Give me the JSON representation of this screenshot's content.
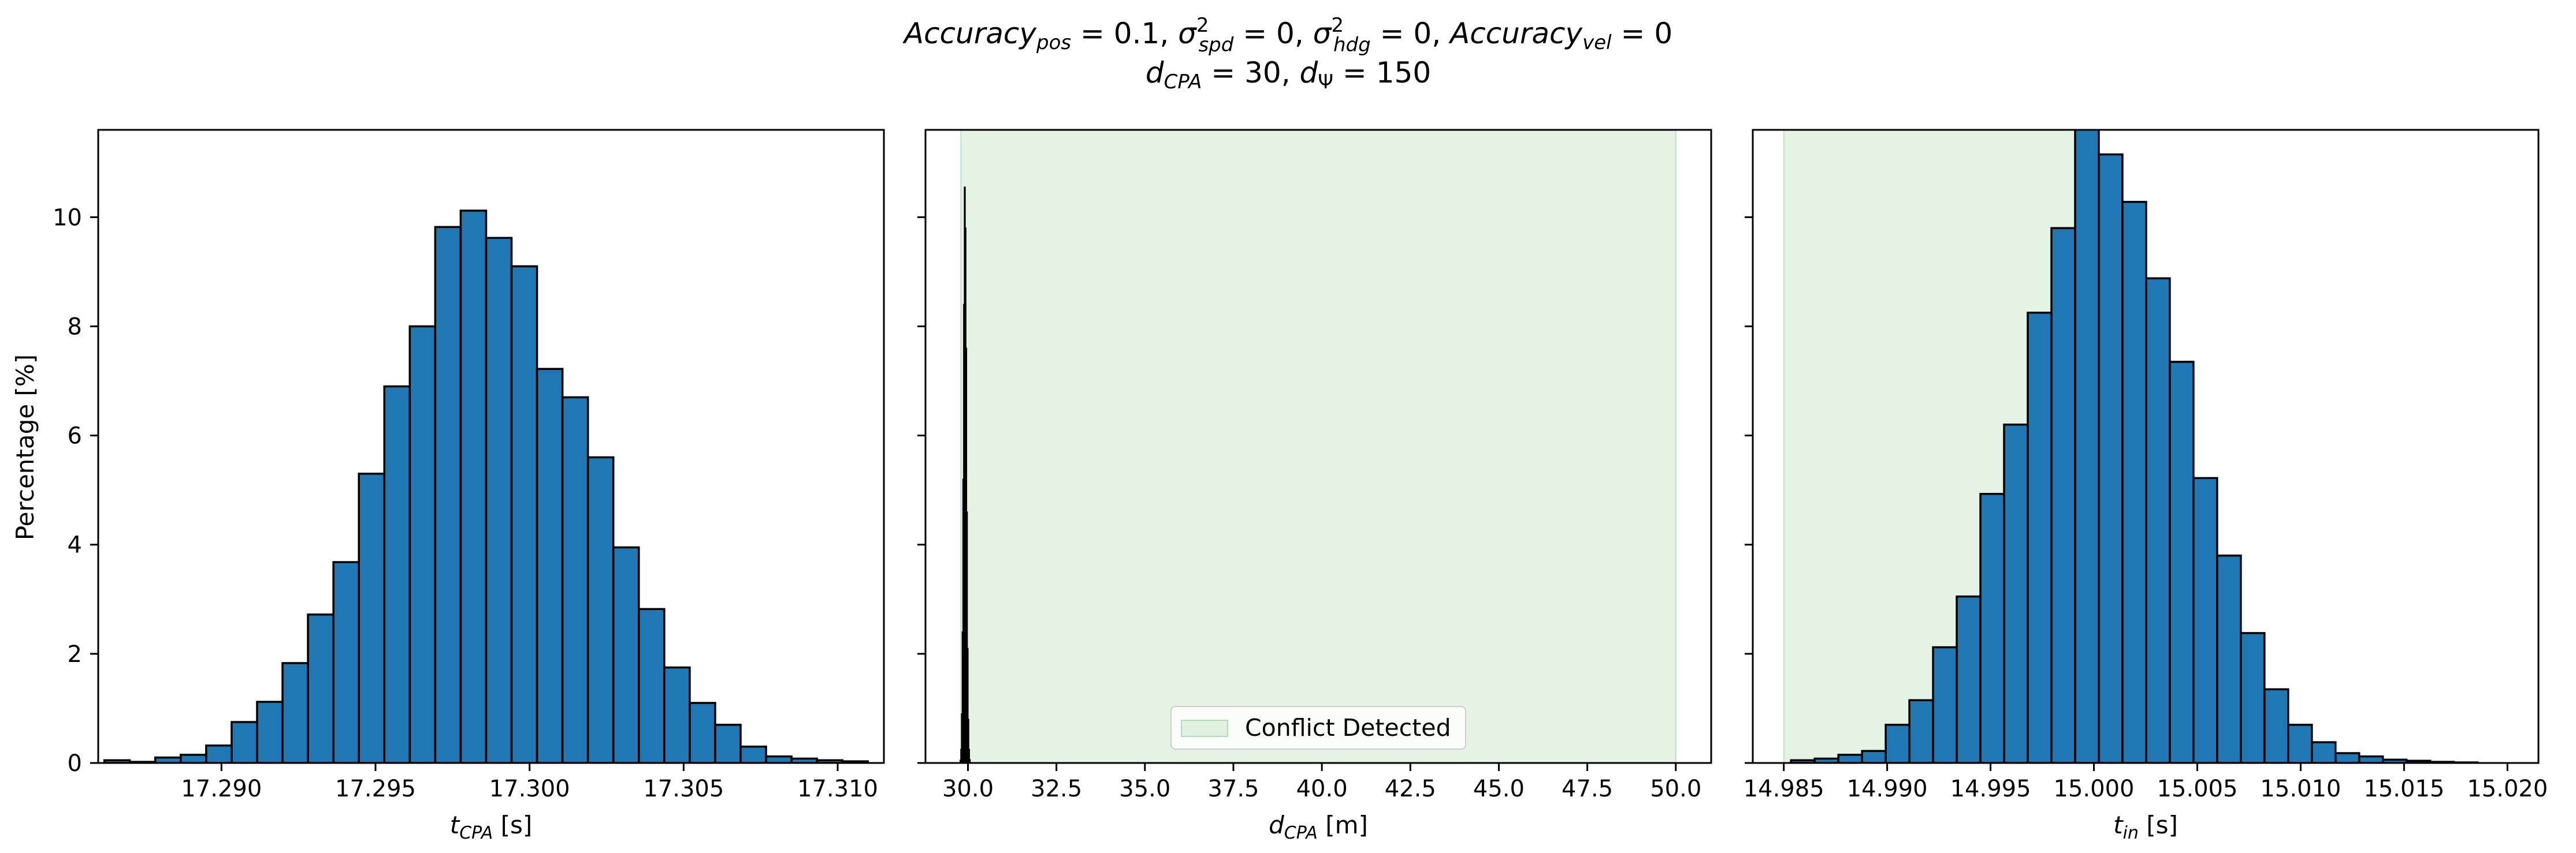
{
  "figure": {
    "title_line1": "Accuracy_pos = 0.1, σ²_spd = 0, σ²_hdg = 0, Accuracy_vel = 0",
    "title_line2": "d_CPA = 30, d_Ψ = 150",
    "ylabel": "Percentage [%]"
  },
  "colors": {
    "bar_fill": "#1f77b4",
    "bar_edge": "#000000",
    "region_fill": "#2ca02c",
    "axis": "#000000"
  },
  "chart_data": [
    {
      "type": "bar",
      "xlabel_main": "t",
      "xlabel_sub": "CPA",
      "xlabel_unit": " [s]",
      "ylabel": "Percentage [%]",
      "xlim": [
        17.286,
        17.3115
      ],
      "ylim": [
        0,
        11.6
      ],
      "xticks": [
        17.29,
        17.295,
        17.3,
        17.305,
        17.31
      ],
      "xtick_labels": [
        "17.290",
        "17.295",
        "17.300",
        "17.305",
        "17.310"
      ],
      "yticks": [
        0,
        2,
        4,
        6,
        8,
        10
      ],
      "ytick_labels": [
        "0",
        "2",
        "4",
        "6",
        "8",
        "10"
      ],
      "bin_start": 17.2862,
      "bin_width": 0.000826,
      "values": [
        0.05,
        0.02,
        0.1,
        0.15,
        0.32,
        0.75,
        1.12,
        1.83,
        2.72,
        3.68,
        5.3,
        6.9,
        8.0,
        9.82,
        10.12,
        9.62,
        9.1,
        7.22,
        6.7,
        5.6,
        3.95,
        2.82,
        1.75,
        1.1,
        0.7,
        0.3,
        0.12,
        0.08,
        0.05,
        0.03
      ],
      "shaded_region": null,
      "legend": null
    },
    {
      "type": "bar",
      "xlabel_main": "d",
      "xlabel_sub": "CPA",
      "xlabel_unit": " [m]",
      "xlim": [
        28.8,
        51.0
      ],
      "ylim": [
        0,
        11.6
      ],
      "xticks": [
        30.0,
        32.5,
        35.0,
        37.5,
        40.0,
        42.5,
        45.0,
        47.5,
        50.0
      ],
      "xtick_labels": [
        "30.0",
        "32.5",
        "35.0",
        "37.5",
        "40.0",
        "42.5",
        "45.0",
        "47.5",
        "50.0"
      ],
      "yticks": [
        0,
        2,
        4,
        6,
        8,
        10
      ],
      "ytick_labels": [],
      "bin_start": 29.78,
      "bin_width": 0.02,
      "values": [
        0.05,
        0.25,
        0.9,
        2.4,
        5.2,
        8.4,
        10.55,
        9.8,
        7.6,
        4.6,
        2.1,
        0.8,
        0.25,
        0.06
      ],
      "shaded_region": [
        29.8,
        50.0
      ],
      "legend": {
        "label": "Conflict Detected",
        "placement": "lower center"
      }
    },
    {
      "type": "bar",
      "xlabel_main": "t",
      "xlabel_sub": "in",
      "xlabel_unit": " [s]",
      "xlim": [
        14.9835,
        15.0215
      ],
      "ylim": [
        0,
        11.6
      ],
      "xticks": [
        14.985,
        14.99,
        14.995,
        15.0,
        15.005,
        15.01,
        15.015,
        15.02
      ],
      "xtick_labels": [
        "14.985",
        "14.990",
        "14.995",
        "15.000",
        "15.005",
        "15.010",
        "15.015",
        "15.020"
      ],
      "yticks": [
        0,
        2,
        4,
        6,
        8,
        10
      ],
      "ytick_labels": [],
      "bin_start": 14.98535,
      "bin_width": 0.001145,
      "values": [
        0.05,
        0.08,
        0.15,
        0.22,
        0.7,
        1.15,
        2.12,
        3.05,
        4.93,
        6.2,
        8.25,
        9.8,
        11.8,
        11.15,
        10.28,
        8.88,
        7.35,
        5.22,
        3.8,
        2.38,
        1.35,
        0.7,
        0.38,
        0.18,
        0.12,
        0.06,
        0.04,
        0.02,
        0.01,
        0.0,
        0.0,
        0.0,
        0.0
      ],
      "shaded_region": [
        14.985,
        14.99975
      ],
      "legend": null
    }
  ]
}
